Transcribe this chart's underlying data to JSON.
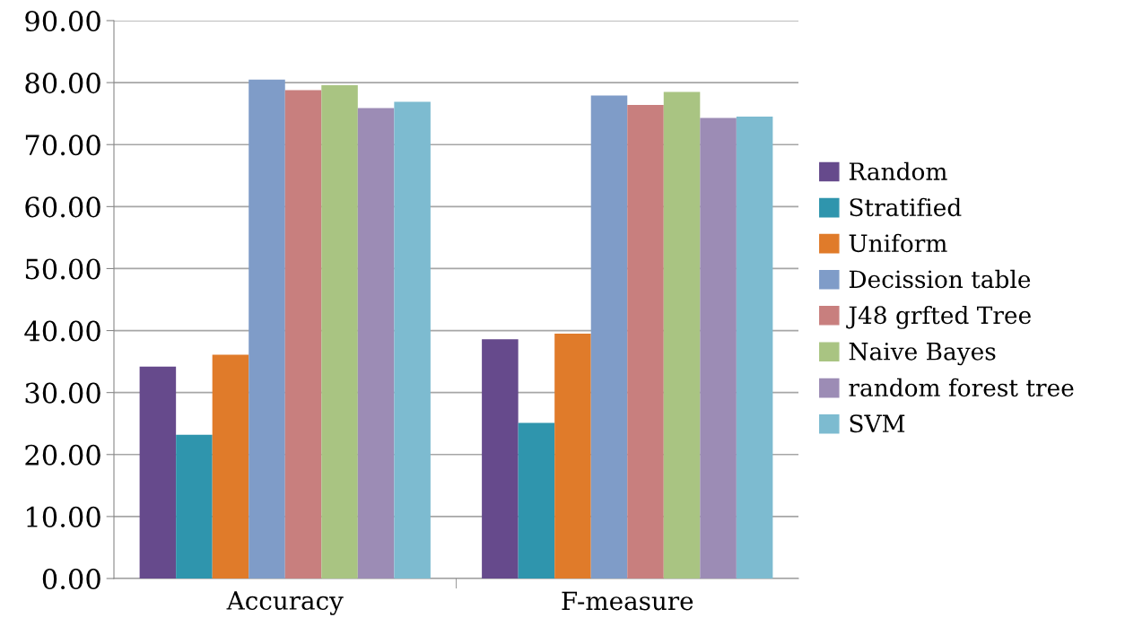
{
  "chart_data": {
    "type": "bar",
    "categories": [
      "Accuracy",
      "F-measure"
    ],
    "series": [
      {
        "name": "Random",
        "color": "#664a8c",
        "values": [
          34.2,
          38.6
        ]
      },
      {
        "name": "Stratified",
        "color": "#2f95ad",
        "values": [
          23.2,
          25.1
        ]
      },
      {
        "name": "Uniform",
        "color": "#e07b2a",
        "values": [
          36.1,
          39.5
        ]
      },
      {
        "name": "Decission table",
        "color": "#7f9cc8",
        "values": [
          80.5,
          77.9
        ]
      },
      {
        "name": "J48 grfted Tree",
        "color": "#c87f7e",
        "values": [
          78.8,
          76.4
        ]
      },
      {
        "name": "Naive Bayes",
        "color": "#a9c482",
        "values": [
          79.6,
          78.5
        ]
      },
      {
        "name": "random forest tree",
        "color": "#9c8cb5",
        "values": [
          75.9,
          74.3
        ]
      },
      {
        "name": "SVM",
        "color": "#7dbbd0",
        "values": [
          76.9,
          74.5
        ]
      }
    ],
    "ylim": [
      0,
      90
    ],
    "yticks": [
      {
        "value": 0,
        "label": "0.00"
      },
      {
        "value": 10,
        "label": "10.00"
      },
      {
        "value": 20,
        "label": "20.00"
      },
      {
        "value": 30,
        "label": "30.00"
      },
      {
        "value": 40,
        "label": "40.00"
      },
      {
        "value": 50,
        "label": "50.00"
      },
      {
        "value": 60,
        "label": "60.00"
      },
      {
        "value": 70,
        "label": "70.00"
      },
      {
        "value": 80,
        "label": "80.00"
      },
      {
        "value": 90,
        "label": "90.00"
      }
    ],
    "grid": "y",
    "legend": "right"
  }
}
